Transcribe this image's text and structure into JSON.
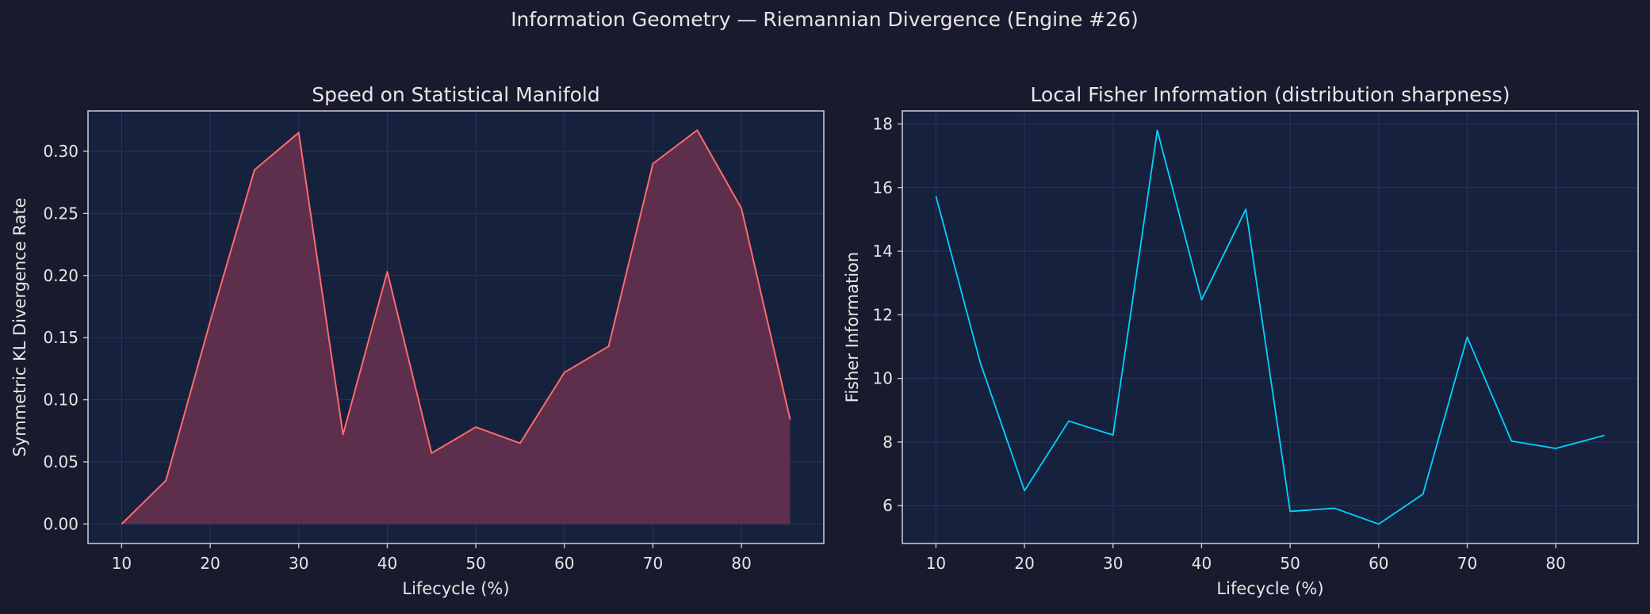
{
  "figure": {
    "suptitle": "Information Geometry — Riemannian Divergence (Engine #26)"
  },
  "colors": {
    "figure_bg": "#1a1a2e",
    "axes_bg": "#16213e",
    "text": "#e6e6e6",
    "spine": "#d0d0d0",
    "grid": "#2a3556",
    "speed_line": "#ff6b6b",
    "speed_fill": "#6b3050",
    "fisher_line": "#00d4ff"
  },
  "chart_data": [
    {
      "type": "area",
      "title": "Speed on Statistical Manifold",
      "xlabel": "Lifecycle (%)",
      "ylabel": "Symmetric KL Divergence Rate",
      "xlim": [
        6.2,
        89.3
      ],
      "ylim": [
        -0.0157,
        0.3325
      ],
      "xticks": [
        10,
        20,
        30,
        40,
        50,
        60,
        70,
        80
      ],
      "yticks": [
        0.0,
        0.05,
        0.1,
        0.15,
        0.2,
        0.25,
        0.3
      ],
      "ytick_labels": [
        "0.00",
        "0.05",
        "0.10",
        "0.15",
        "0.20",
        "0.25",
        "0.30"
      ],
      "grid": true,
      "x": [
        10,
        15,
        20,
        25,
        30,
        35,
        40,
        45,
        50,
        55,
        60,
        65,
        70,
        75,
        80,
        85.5
      ],
      "series": [
        {
          "values": [
            0.0,
            0.035,
            0.163,
            0.285,
            0.315,
            0.072,
            0.203,
            0.057,
            0.078,
            0.065,
            0.122,
            0.143,
            0.29,
            0.317,
            0.254,
            0.084
          ]
        }
      ]
    },
    {
      "type": "line",
      "title": "Local Fisher Information (distribution sharpness)",
      "xlabel": "Lifecycle (%)",
      "ylabel": "Fisher Information",
      "xlim": [
        6.2,
        89.3
      ],
      "ylim": [
        4.81,
        18.41
      ],
      "xticks": [
        10,
        20,
        30,
        40,
        50,
        60,
        70,
        80
      ],
      "yticks": [
        6,
        8,
        10,
        12,
        14,
        16,
        18
      ],
      "ytick_labels": [
        "6",
        "8",
        "10",
        "12",
        "14",
        "16",
        "18"
      ],
      "grid": true,
      "x": [
        10,
        15,
        20,
        25,
        30,
        35,
        40,
        45,
        50,
        55,
        60,
        65,
        70,
        75,
        80,
        85.5
      ],
      "series": [
        {
          "values": [
            15.73,
            10.5,
            6.47,
            8.66,
            8.22,
            17.8,
            12.47,
            15.32,
            5.82,
            5.92,
            5.42,
            6.36,
            11.3,
            8.03,
            7.8,
            8.21
          ]
        }
      ]
    }
  ]
}
